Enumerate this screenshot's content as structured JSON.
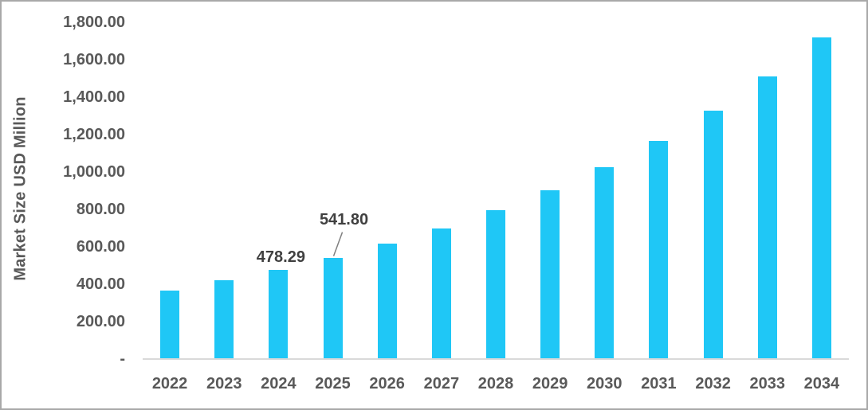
{
  "chart_data": {
    "type": "bar",
    "title": "",
    "xlabel": "",
    "ylabel": "Market Size USD Million",
    "categories": [
      "2022",
      "2023",
      "2024",
      "2025",
      "2026",
      "2027",
      "2028",
      "2029",
      "2030",
      "2031",
      "2032",
      "2033",
      "2034"
    ],
    "values": [
      368,
      421,
      478.29,
      541.8,
      616,
      699,
      795,
      902,
      1026,
      1168,
      1328,
      1510,
      1721
    ],
    "ylim": [
      0,
      1800
    ],
    "y_ticks": [
      {
        "label": "1,800.00",
        "value": 1800
      },
      {
        "label": "1,600.00",
        "value": 1600
      },
      {
        "label": "1,400.00",
        "value": 1400
      },
      {
        "label": "1,200.00",
        "value": 1200
      },
      {
        "label": "1,000.00",
        "value": 1000
      },
      {
        "label": "800.00",
        "value": 800
      },
      {
        "label": "600.00",
        "value": 600
      },
      {
        "label": "400.00",
        "value": 400
      },
      {
        "label": "200.00",
        "value": 200
      },
      {
        "label": "-",
        "value": 0
      }
    ],
    "grid": false,
    "legend": false,
    "data_labels": [
      {
        "category": "2024",
        "text": "478.29",
        "leader_line": false
      },
      {
        "category": "2025",
        "text": "541.80",
        "leader_line": true
      }
    ],
    "colors": {
      "bar": "#1fc7f6",
      "axis_line": "#d9d9d9",
      "tick_text": "#595959",
      "data_label_text": "#404040",
      "leader_line": "#7f7f7f",
      "frame_border": "#a9a9a9"
    }
  }
}
